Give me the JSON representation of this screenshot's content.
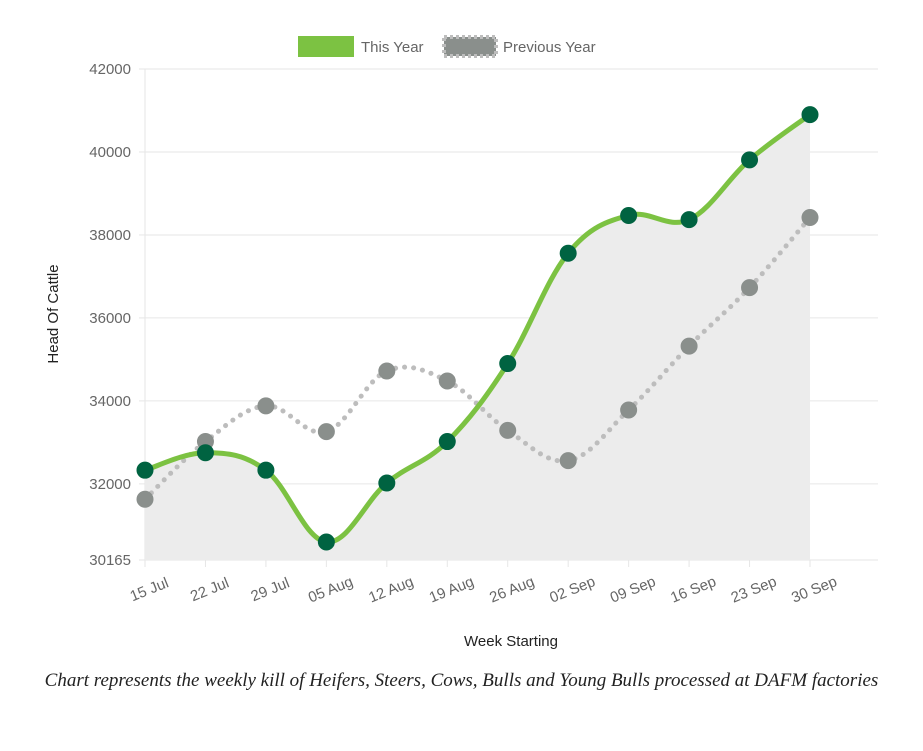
{
  "chart_data": {
    "type": "line",
    "x": [
      "15 Jul",
      "22 Jul",
      "29 Jul",
      "05 Aug",
      "12 Aug",
      "19 Aug",
      "26 Aug",
      "02 Sep",
      "09 Sep",
      "16 Sep",
      "23 Sep",
      "30 Sep"
    ],
    "series": [
      {
        "name": "This Year",
        "color": "#7cc242",
        "marker_color": "#006341",
        "style": "solid",
        "fill": "#ececec",
        "values": [
          32330,
          32750,
          32330,
          30600,
          32020,
          33020,
          34900,
          37560,
          38470,
          38370,
          39810,
          40900
        ]
      },
      {
        "name": "Previous Year",
        "color": "#bdbdbd",
        "marker_color": "#8a8f8c",
        "style": "dotted",
        "values": [
          31630,
          33020,
          33880,
          33260,
          34720,
          34480,
          33290,
          32560,
          33780,
          35320,
          36730,
          38420
        ]
      }
    ],
    "ylabel": "Head Of Cattle",
    "xlabel": "Week Starting",
    "ylim": [
      30165,
      42000
    ],
    "yticks": [
      30165,
      32000,
      34000,
      36000,
      38000,
      40000,
      42000
    ],
    "grid": true,
    "legend": "top-center"
  },
  "caption": "Chart represents the weekly kill of Heifers, Steers, Cows, Bulls and Young Bulls processed at DAFM factories"
}
